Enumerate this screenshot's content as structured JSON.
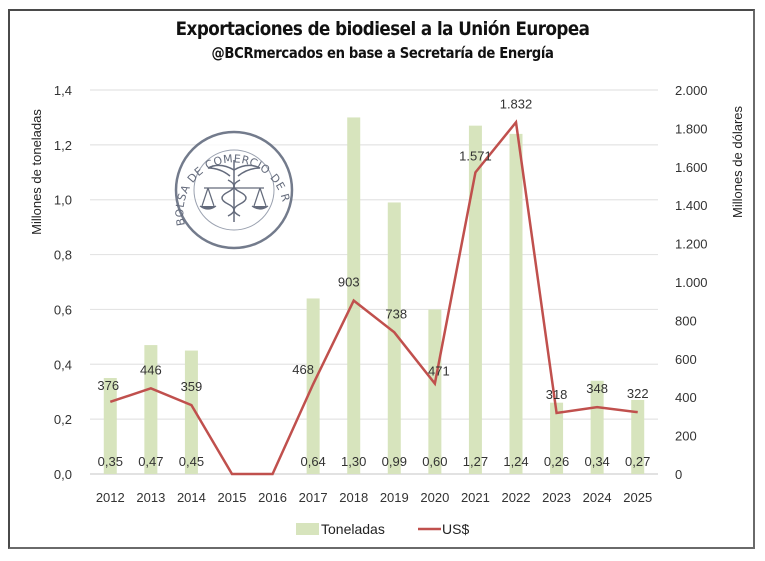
{
  "chart_data": {
    "type": "bar",
    "combo": "bar-line-dual-axis",
    "title": "Exportaciones de biodiesel a la Unión Europea",
    "subtitle": "@BCRmercados en base a Secretaría de Energía",
    "categories": [
      "2012",
      "2013",
      "2014",
      "2015",
      "2016",
      "2017",
      "2018",
      "2019",
      "2020",
      "2021",
      "2022",
      "2023",
      "2024",
      "2025"
    ],
    "series": [
      {
        "name": "Toneladas",
        "type": "bar",
        "axis": "left",
        "color": "#d7e4bd",
        "values": [
          0.35,
          0.47,
          0.45,
          0,
          0,
          0.64,
          1.3,
          0.99,
          0.6,
          1.27,
          1.24,
          0.26,
          0.34,
          0.27
        ],
        "labels": [
          "0,35",
          "0,47",
          "0,45",
          "",
          "",
          "0,64",
          "1,30",
          "0,99",
          "0,60",
          "1,27",
          "1,24",
          "0,26",
          "0,34",
          "0,27"
        ]
      },
      {
        "name": "US$",
        "type": "line",
        "axis": "right",
        "color": "#c0504d",
        "values": [
          376,
          446,
          359,
          0,
          0,
          468,
          903,
          738,
          471,
          1571,
          1832,
          318,
          348,
          322
        ],
        "labels": [
          "376",
          "446",
          "359",
          "",
          "",
          "468",
          "903",
          "738",
          "471",
          "1.571",
          "1.832",
          "318",
          "348",
          "322"
        ]
      }
    ],
    "ylabel": "Millones de toneladas",
    "ylim": [
      0,
      1.4
    ],
    "yticks": [
      "0,0",
      "0,2",
      "0,4",
      "0,6",
      "0,8",
      "1,0",
      "1,2",
      "1,4"
    ],
    "y2label": "Millones de dólares",
    "y2lim": [
      0,
      2000
    ],
    "y2ticks": [
      "0",
      "200",
      "400",
      "600",
      "800",
      "1.000",
      "1.200",
      "1.400",
      "1.600",
      "1.800",
      "2.000"
    ],
    "grid": true,
    "legend": "bottom-center",
    "watermark": "BOLSA DE COMERCIO DE ROSARIO"
  }
}
